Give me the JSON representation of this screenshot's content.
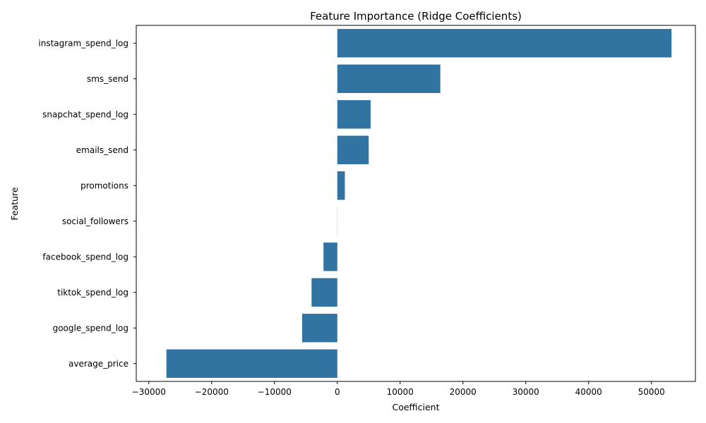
{
  "chart_data": {
    "type": "bar",
    "orientation": "horizontal",
    "title": "Feature Importance (Ridge Coefficients)",
    "xlabel": "Coefficient",
    "ylabel": "Feature",
    "categories": [
      "instagram_spend_log",
      "sms_send",
      "snapchat_spend_log",
      "emails_send",
      "promotions",
      "social_followers",
      "facebook_spend_log",
      "tiktok_spend_log",
      "google_spend_log",
      "average_price"
    ],
    "values": [
      53200,
      16400,
      5300,
      5000,
      1200,
      20,
      -2200,
      -4100,
      -5600,
      -27200
    ],
    "xlim": [
      -32000,
      57000
    ],
    "xticks": [
      -30000,
      -20000,
      -10000,
      0,
      10000,
      20000,
      30000,
      40000,
      50000
    ],
    "xtick_labels": [
      "−30000",
      "−20000",
      "−10000",
      "0",
      "10000",
      "20000",
      "30000",
      "40000",
      "50000"
    ],
    "bar_color": "#3274a1",
    "grid": false,
    "legend": "none"
  }
}
